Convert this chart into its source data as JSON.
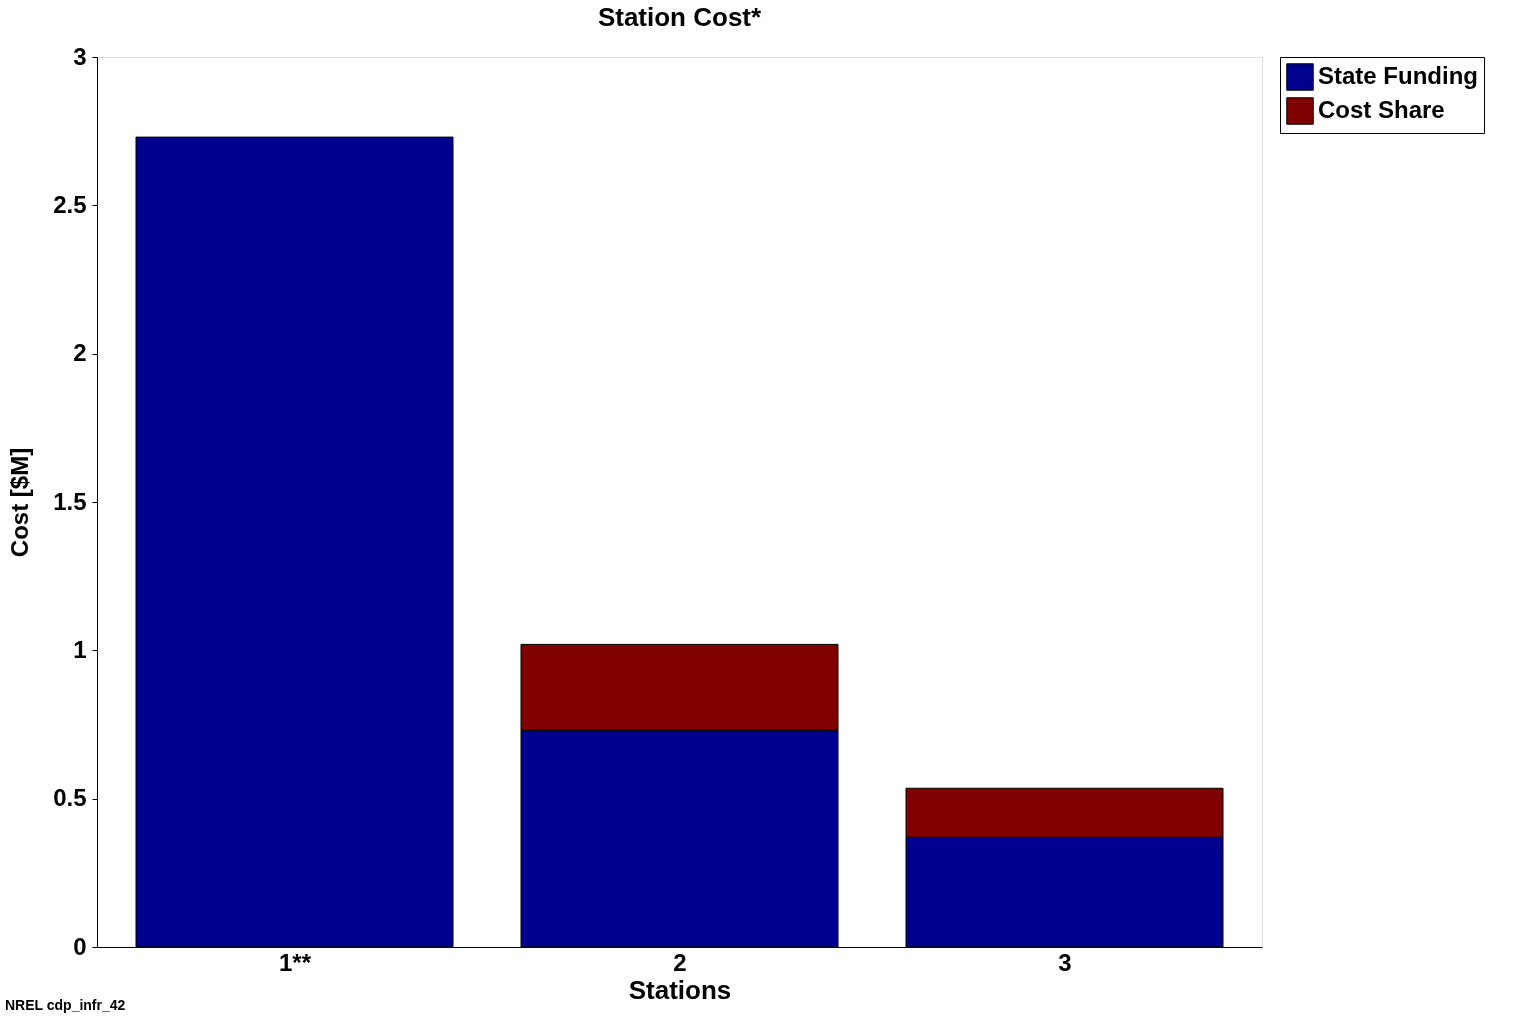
{
  "chart_data": {
    "type": "bar",
    "title": "Station Cost*",
    "xlabel": "Stations",
    "ylabel": "Cost [$M]",
    "categories": [
      "1**",
      "2",
      "3"
    ],
    "stacked": true,
    "series": [
      {
        "name": "State Funding",
        "color": "#00008f",
        "values": [
          2.73,
          0.73,
          0.37
        ]
      },
      {
        "name": "Cost Share",
        "color": "#800000",
        "values": [
          null,
          0.29,
          0.165
        ]
      }
    ],
    "ylim": [
      0,
      3
    ],
    "yticks": [
      0,
      0.5,
      1,
      1.5,
      2,
      2.5,
      3
    ],
    "grid": false,
    "legend": "top right",
    "annotations": [
      "NREL cdp_infr_42"
    ]
  }
}
